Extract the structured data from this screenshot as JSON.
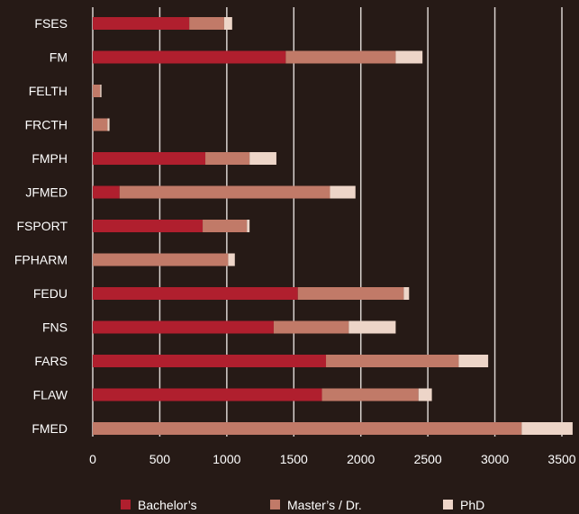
{
  "chart_data": {
    "type": "bar",
    "orientation": "horizontal",
    "stacked": true,
    "categories": [
      "FSES",
      "FM",
      "FELTH",
      "FRCTH",
      "FMPH",
      "JFMED",
      "FSPORT",
      "FPHARM",
      "FEDU",
      "FNS",
      "FARS",
      "FLAW",
      "FMED"
    ],
    "series": [
      {
        "name": "Bachelor’s",
        "color": "#b01f2e",
        "values": [
          720,
          1440,
          0,
          0,
          840,
          200,
          820,
          0,
          1530,
          1350,
          1740,
          1710,
          0
        ]
      },
      {
        "name": "Master’s / Dr.",
        "color": "#c17a68",
        "values": [
          260,
          820,
          55,
          110,
          330,
          1570,
          330,
          1010,
          790,
          560,
          990,
          720,
          3200
        ]
      },
      {
        "name": "PhD",
        "color": "#edd5c8",
        "values": [
          60,
          200,
          10,
          15,
          200,
          190,
          20,
          50,
          40,
          350,
          220,
          100,
          380
        ]
      }
    ],
    "x_ticks": [
      "0",
      "500",
      "1000",
      "1500",
      "2000",
      "2500",
      "3000",
      "3500"
    ],
    "xlim": [
      0,
      3500
    ],
    "grid": "vertical",
    "legend_position": "bottom",
    "colors": {
      "background": "#261a16",
      "gridline": "#d9d2cf",
      "text": "#ffffff"
    }
  }
}
